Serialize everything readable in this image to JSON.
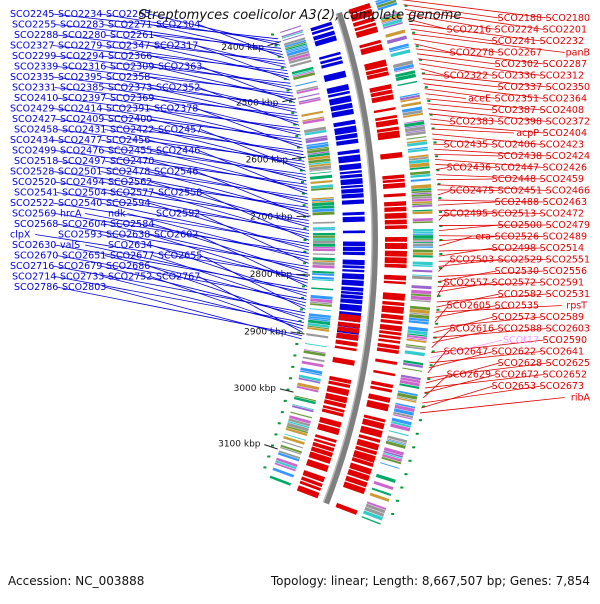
{
  "title": "Streptomyces coelicolor A3(2), complete genome",
  "accession_text": "Accession: NC_003888",
  "summary_text": "Topology: linear; Length: 8,667,507 bp; Genes: 7,854",
  "colors": {
    "forward": "#e00000",
    "reverse": "#0000dd",
    "rna": "#ff99ff",
    "backbone": "#7f7f7f",
    "tick": "#222222",
    "cds_palette": [
      "#00aa66",
      "#33cccc",
      "#9966cc",
      "#cc9933",
      "#669933",
      "#3399ff",
      "#cc66cc",
      "#999999"
    ]
  },
  "scale_ticks": [
    "2400 kbp",
    "2500 kbp",
    "2600 kbp",
    "2700 kbp",
    "2800 kbp",
    "2900 kbp",
    "3000 kbp",
    "3100 kbp"
  ],
  "left_labels": [
    "SCO2245",
    "SCO2234",
    "SCO2265",
    "SCO2255",
    "SCO2283",
    "SCO2271",
    "SCO2304",
    "SCO2288",
    "SCO2280",
    "SCO2261",
    "SCO2327",
    "SCO2279",
    "SCO2347",
    "SCO2317",
    "SCO2299",
    "SCO2294",
    "SCO2366",
    "SCO2339",
    "SCO2316",
    "SCO2309",
    "SCO2363",
    "SCO2335",
    "SCO2395",
    "SCO2358",
    "SCO2331",
    "SCO2385",
    "SCO2373",
    "SCO2352",
    "SCO2410",
    "SCO2397",
    "SCO2369",
    "SCO2429",
    "SCO2414",
    "SCO2391",
    "SCO2378",
    "SCO2427",
    "SCO2409",
    "SCO2400",
    "SCO2458",
    "SCO2431",
    "SCO2422",
    "SCO2457",
    "SCO2434",
    "SCO2477",
    "SCO2456",
    "SCO2499",
    "SCO2476",
    "SCO2455",
    "SCO2446",
    "SCO2518",
    "SCO2497",
    "SCO2470",
    "SCO2528",
    "SCO2501",
    "SCO2478",
    "SCO2546",
    "SCO2520",
    "SCO2494",
    "SCO2562",
    "SCO2541",
    "SCO2504",
    "SCO2577",
    "SCO2558",
    "SCO2522",
    "SCO2540",
    "SCO2594",
    "SCO2569",
    "hrcA",
    "ndk",
    "SCO2592",
    "SCO2568",
    "SCO2604",
    "SCO2584",
    "clpX",
    "SCO2593",
    "SCO2638",
    "SCO2602",
    "SCO2630",
    "valS",
    "SCO2634",
    "SCO2670",
    "SCO2651",
    "SCO2677",
    "SCO2655",
    "SCO2716",
    "SCO2679",
    "SCO2686",
    "SCO2714",
    "SCO2733",
    "SCO2752",
    "SCO2767",
    "SCO2786",
    "SCO2803"
  ],
  "right_labels": [
    "SCO2180",
    "SCO2188",
    "SCO2201",
    "SCO2224",
    "SCO2216",
    "SCO2232",
    "SCO2241",
    "panB",
    "SCO2267",
    "SCO2278",
    "SCO2287",
    "SCO2302",
    "SCO2312",
    "SCO2336",
    "SCO2322",
    "SCO2350",
    "SCO2337",
    "SCO2364",
    "SCO2351",
    "aceE",
    "SCO2408",
    "SCO2387",
    "SCO2372",
    "SCO2398",
    "SCO2383",
    "SCO2404",
    "acpP",
    "SCO2423",
    "SCO2406",
    "SCO2435",
    "SCO2424",
    "SCO2438",
    "SCO2426",
    "SCO2447",
    "SCO2436",
    "SCO2459",
    "SCO2448",
    "SCO2466",
    "SCO2451",
    "SCO2475",
    "SCO2463",
    "SCO2488",
    "SCO2472",
    "SCO2513",
    "SCO2495",
    "SCO2479",
    "SCO2500",
    "SCO2489",
    "SCO2526",
    "era",
    "SCO2514",
    "SCO2498",
    "SCO2551",
    "SCO2529",
    "SCO2503",
    "SCO2556",
    "SCO2530",
    "SCO2591",
    "SCO2572",
    "SCO2557",
    "SCO2531",
    "SCO2582",
    "rpsT",
    "SCO2535",
    "SCO2605",
    "SCO2589",
    "SCO2573",
    "SCO2603",
    "SCO2588",
    "SCO2616",
    "SCO2590",
    "SCOt17",
    "SCO2641",
    "SCO2622",
    "SCO2647",
    "SCO2625",
    "SCO2628",
    "SCO2652",
    "SCO2672",
    "SCO2629",
    "SCO2673",
    "SCO2653",
    "ribA"
  ]
}
